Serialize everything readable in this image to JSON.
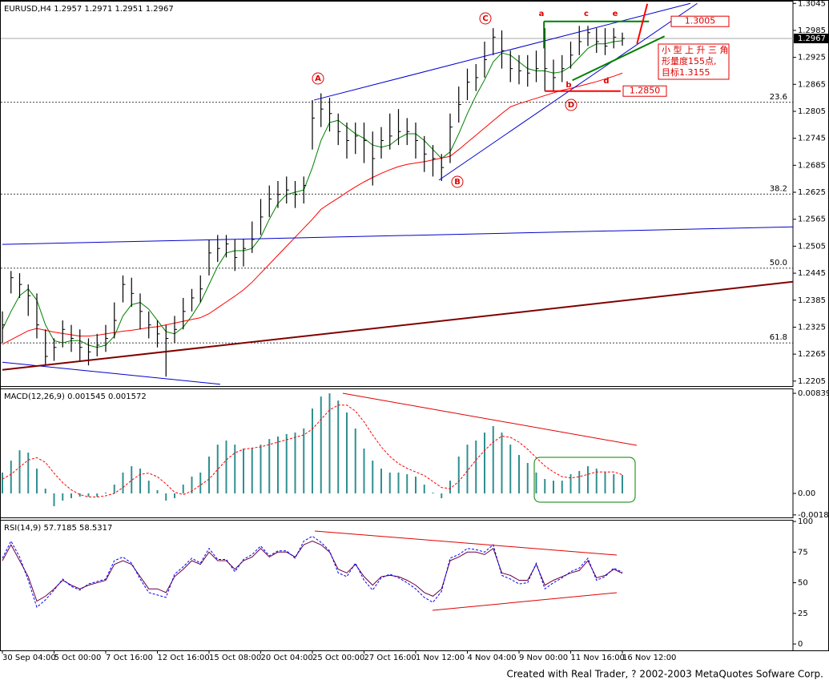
{
  "chart_data": [
    {
      "type": "ohlc",
      "title": "EURUSD,H4 1.2957 1.2971 1.2951 1.2967",
      "color": "#000000",
      "high": [
        1.236,
        1.245,
        1.2445,
        1.242,
        1.24,
        1.232,
        1.23,
        1.234,
        1.233,
        1.232,
        1.23,
        1.231,
        1.233,
        1.238,
        1.244,
        1.2435,
        1.24,
        1.236,
        1.234,
        1.233,
        1.235,
        1.239,
        1.241,
        1.244,
        1.252,
        1.253,
        1.253,
        1.252,
        1.252,
        1.256,
        1.261,
        1.264,
        1.265,
        1.266,
        1.265,
        1.266,
        1.283,
        1.2845,
        1.2835,
        1.28,
        1.278,
        1.278,
        1.278,
        1.276,
        1.277,
        1.28,
        1.281,
        1.279,
        1.278,
        1.275,
        1.273,
        1.271,
        1.28,
        1.286,
        1.29,
        1.291,
        1.296,
        1.299,
        1.2985,
        1.294,
        1.293,
        1.293,
        1.294,
        1.299,
        1.292,
        1.293,
        1.296,
        1.2995,
        1.2995,
        1.299,
        1.299,
        1.299,
        1.298
      ],
      "low": [
        1.229,
        1.24,
        1.239,
        1.235,
        1.23,
        1.224,
        1.225,
        1.228,
        1.227,
        1.225,
        1.224,
        1.226,
        1.227,
        1.23,
        1.238,
        1.237,
        1.232,
        1.23,
        1.228,
        1.2215,
        1.229,
        1.232,
        1.236,
        1.238,
        1.244,
        1.247,
        1.248,
        1.245,
        1.246,
        1.249,
        1.253,
        1.257,
        1.259,
        1.26,
        1.259,
        1.26,
        1.272,
        1.277,
        1.276,
        1.273,
        1.27,
        1.271,
        1.269,
        1.264,
        1.27,
        1.272,
        1.273,
        1.273,
        1.27,
        1.267,
        1.266,
        1.265,
        1.269,
        1.278,
        1.283,
        1.285,
        1.288,
        1.293,
        1.29,
        1.287,
        1.2865,
        1.286,
        1.287,
        1.285,
        1.285,
        1.287,
        1.29,
        1.293,
        1.295,
        1.2935,
        1.293,
        1.2945,
        1.2951
      ],
      "close": [
        1.233,
        1.2435,
        1.242,
        1.2395,
        1.233,
        1.226,
        1.228,
        1.232,
        1.23,
        1.228,
        1.227,
        1.2285,
        1.23,
        1.234,
        1.242,
        1.24,
        1.236,
        1.233,
        1.231,
        1.23,
        1.232,
        1.236,
        1.239,
        1.241,
        1.249,
        1.25,
        1.251,
        1.248,
        1.25,
        1.252,
        1.257,
        1.261,
        1.262,
        1.263,
        1.262,
        1.264,
        1.279,
        1.281,
        1.28,
        1.276,
        1.274,
        1.275,
        1.274,
        1.27,
        1.274,
        1.275,
        1.276,
        1.276,
        1.274,
        1.271,
        1.27,
        1.268,
        1.277,
        1.282,
        1.287,
        1.288,
        1.292,
        1.297,
        1.294,
        1.29,
        1.2895,
        1.289,
        1.29,
        1.29,
        1.288,
        1.29,
        1.293,
        1.296,
        1.298,
        1.296,
        1.295,
        1.297,
        1.2967
      ],
      "lines": [
        {
          "color": "#008000",
          "values": [
            1.232,
            1.236,
            1.2395,
            1.241,
            1.2385,
            1.233,
            1.2295,
            1.229,
            1.2295,
            1.2295,
            1.2285,
            1.228,
            1.2285,
            1.2305,
            1.235,
            1.2375,
            1.238,
            1.2365,
            1.234,
            1.2315,
            1.231,
            1.2325,
            1.235,
            1.238,
            1.242,
            1.246,
            1.249,
            1.2495,
            1.2495,
            1.25,
            1.2525,
            1.2565,
            1.26,
            1.262,
            1.2625,
            1.263,
            1.268,
            1.274,
            1.278,
            1.2785,
            1.277,
            1.2755,
            1.2745,
            1.273,
            1.2725,
            1.273,
            1.2745,
            1.2755,
            1.2755,
            1.274,
            1.272,
            1.27,
            1.2715,
            1.2755,
            1.28,
            1.284,
            1.2875,
            1.2915,
            1.2935,
            1.293,
            1.2915,
            1.29,
            1.2895,
            1.2895,
            1.289,
            1.2893,
            1.2905,
            1.2925,
            1.2945,
            1.2955,
            1.2955,
            1.296,
            1.2962
          ]
        },
        {
          "color": "#ff0000",
          "values": [
            1.2287,
            1.2297,
            1.2307,
            1.2317,
            1.2322,
            1.2318,
            1.2314,
            1.2311,
            1.2308,
            1.2305,
            1.2305,
            1.2307,
            1.231,
            1.2313,
            1.2316,
            1.2318,
            1.2321,
            1.2324,
            1.2326,
            1.233,
            1.2334,
            1.2338,
            1.2342,
            1.2346,
            1.2355,
            1.2368,
            1.2381,
            1.2394,
            1.2408,
            1.2425,
            1.2445,
            1.2465,
            1.2485,
            1.2505,
            1.2525,
            1.2545,
            1.2565,
            1.2587,
            1.26,
            1.2612,
            1.2625,
            1.2637,
            1.2648,
            1.2658,
            1.2667,
            1.2675,
            1.2682,
            1.2687,
            1.269,
            1.2693,
            1.2697,
            1.2701,
            1.2705,
            1.272,
            1.2736,
            1.2752,
            1.2768,
            1.2784,
            1.28,
            1.2815,
            1.2822,
            1.2828,
            1.2834,
            1.284,
            1.2846,
            1.2852,
            1.2856,
            1.2861,
            1.2866,
            1.2871,
            1.2877,
            1.2883,
            1.289
          ]
        }
      ],
      "levels": [
        {
          "value": 1.2825,
          "label": "23.6"
        },
        {
          "value": 1.2621,
          "label": "38.2"
        },
        {
          "value": 1.2456,
          "label": "50.0"
        },
        {
          "value": 1.229,
          "label": "61.8"
        }
      ],
      "last_price": 1.2967,
      "price_marks": [
        {
          "value": 1.3005,
          "label": "1.3005"
        },
        {
          "value": 1.285,
          "label": "1.2850"
        }
      ],
      "trendlines": [
        {
          "color": "#0000cc",
          "x": [
            36.2,
            79.9
          ],
          "y": [
            1.283,
            1.3045
          ]
        },
        {
          "color": "#0000cc",
          "x": [
            50.7,
            80.7
          ],
          "y": [
            1.2652,
            1.3045
          ]
        },
        {
          "color": "#0000cc",
          "x": [
            0,
            91.8
          ],
          "y": [
            1.2509,
            1.2548
          ]
        },
        {
          "color": "#0000cc",
          "x": [
            0,
            25.3
          ],
          "y": [
            1.2247,
            1.2198
          ]
        },
        {
          "color": "#800000",
          "x": [
            0,
            91.8
          ],
          "y": [
            1.223,
            1.2426
          ]
        },
        {
          "color": "#008000",
          "x": [
            62.9,
            75.1
          ],
          "y": [
            1.3005,
            1.3005
          ]
        },
        {
          "color": "#008000",
          "x": [
            62.9,
            62.9
          ],
          "y": [
            1.3005,
            1.2945
          ]
        },
        {
          "color": "#008000",
          "x": [
            66.2,
            76.9
          ],
          "y": [
            1.2874,
            1.2972
          ]
        },
        {
          "color": "#ff0000",
          "x": [
            63.0,
            71.8
          ],
          "y": [
            1.285,
            1.285
          ]
        },
        {
          "color": "#ff0000",
          "x": [
            73.7,
            74.9
          ],
          "y": [
            1.2955,
            1.3044
          ]
        }
      ],
      "wave_labels": [
        "A",
        "B",
        "C",
        "D",
        "a",
        "b",
        "c",
        "d",
        "e"
      ],
      "note": [
        "小 型 上 升 三 角",
        "形量度155点,",
        "目标1.3155"
      ],
      "ylim": [
        1.2194,
        1.3049
      ],
      "yticks": [
        1.3045,
        1.2985,
        1.2925,
        1.2865,
        1.2805,
        1.2745,
        1.2685,
        1.2625,
        1.2565,
        1.2505,
        1.2445,
        1.2385,
        1.2325,
        1.2265,
        1.2205
      ]
    },
    {
      "type": "bar",
      "title": "MACD(12,26,9) 0.001545 0.001572",
      "series": [
        {
          "color": "#2f8f8f",
          "style": "bar",
          "values": [
            0.00175,
            0.00275,
            0.00362,
            0.00342,
            0.00208,
            0.0004,
            -0.00107,
            -0.0006,
            -0.0004,
            -0.00027,
            -0.00027,
            -0.00027,
            7e-05,
            0.00074,
            0.00175,
            0.00228,
            0.00208,
            0.00107,
            0.00027,
            -0.0006,
            -0.0004,
            0.00074,
            0.00141,
            0.00175,
            0.00309,
            0.00409,
            0.00443,
            0.00409,
            0.00376,
            0.00376,
            0.00409,
            0.00456,
            0.00477,
            0.00497,
            0.0051,
            0.00544,
            0.00711,
            0.00812,
            0.00839,
            0.00778,
            0.00678,
            0.00544,
            0.00376,
            0.00275,
            0.00208,
            0.00175,
            0.00175,
            0.00161,
            0.00141,
            0.00074,
            7e-05,
            -0.0004,
            0.00107,
            0.00309,
            0.00409,
            0.00443,
            0.0051,
            0.00564,
            0.0051,
            0.00409,
            0.00322,
            0.00255,
            0.00175,
            0.00121,
            0.00107,
            0.00107,
            0.00161,
            0.00188,
            0.00228,
            0.00208,
            0.00175,
            0.00161,
            0.001545
          ]
        },
        {
          "color": "#ff0000",
          "style": "dashed",
          "values": [
            0.0012,
            0.0016,
            0.0022,
            0.0028,
            0.003,
            0.0026,
            0.0017,
            0.0009,
            0.0003,
            -0.0001,
            -0.0003,
            -0.0003,
            -0.0002,
            0.0,
            0.0005,
            0.0011,
            0.0016,
            0.0017,
            0.0014,
            0.0008,
            0.0001,
            -0.0001,
            0.0002,
            0.0007,
            0.0012,
            0.002,
            0.0028,
            0.0034,
            0.0037,
            0.0038,
            0.0039,
            0.0041,
            0.0043,
            0.0045,
            0.0047,
            0.0049,
            0.0054,
            0.0062,
            0.007,
            0.0074,
            0.0074,
            0.0069,
            0.006,
            0.0049,
            0.0039,
            0.0031,
            0.0025,
            0.0021,
            0.0018,
            0.0015,
            0.001,
            0.0005,
            0.0004,
            0.001,
            0.0019,
            0.0028,
            0.0036,
            0.0043,
            0.0048,
            0.0047,
            0.0043,
            0.0037,
            0.003,
            0.0023,
            0.0018,
            0.0014,
            0.0013,
            0.0014,
            0.0016,
            0.0018,
            0.0018,
            0.0018,
            0.001572
          ]
        }
      ],
      "ylim": [
        -0.00201,
        0.00873
      ],
      "yticks": [
        0.00839,
        {
          "value": 0,
          "label": "0.00"
        },
        -0.0018
      ]
    },
    {
      "type": "line",
      "title": "RSI(14,9) 57.7185 58.5317",
      "categories": [
        "30 Sep 04:00",
        null,
        null,
        null,
        null,
        null,
        "5 Oct 00:00",
        null,
        null,
        null,
        null,
        null,
        "7 Oct 16:00",
        null,
        null,
        null,
        null,
        null,
        "12 Oct 16:00",
        null,
        null,
        null,
        null,
        null,
        "15 Oct 08:00",
        null,
        null,
        null,
        null,
        null,
        "20 Oct 04:00",
        null,
        null,
        null,
        null,
        null,
        "25 Oct 00:00",
        null,
        null,
        null,
        null,
        null,
        "27 Oct 16:00",
        null,
        null,
        null,
        null,
        null,
        "1 Nov 12:00",
        null,
        null,
        null,
        null,
        null,
        "4 Nov 04:00",
        null,
        null,
        null,
        null,
        null,
        "9 Nov 00:00",
        null,
        null,
        null,
        null,
        null,
        "11 Nov 16:00",
        null,
        null,
        null,
        null,
        null,
        "16 Nov 12:00"
      ],
      "series": [
        {
          "color": "#6a0040",
          "style": "solid",
          "values": [
            68,
            81,
            68,
            55,
            35,
            39,
            45,
            52,
            48,
            45,
            48,
            50,
            52,
            65,
            68,
            65,
            55,
            45,
            45,
            42,
            55,
            61,
            68,
            65,
            75,
            68,
            68,
            61,
            68,
            71,
            78,
            71,
            75,
            75,
            71,
            81,
            84,
            81,
            75,
            61,
            58,
            65,
            55,
            48,
            55,
            56,
            55,
            52,
            48,
            42,
            39,
            45,
            68,
            71,
            75,
            75,
            73,
            78,
            58,
            56,
            52,
            52,
            65,
            48,
            52,
            55,
            58,
            60,
            68,
            54,
            56,
            61,
            57.7185
          ]
        },
        {
          "color": "#0000ff",
          "style": "dashed",
          "values": [
            70,
            84,
            71,
            52,
            30,
            36,
            44,
            53,
            47,
            44,
            49,
            51,
            53,
            68,
            71,
            66,
            53,
            42,
            40,
            38,
            57,
            63,
            70,
            66,
            78,
            69,
            69,
            59,
            69,
            73,
            80,
            72,
            76,
            76,
            70,
            84,
            88,
            83,
            76,
            58,
            55,
            66,
            52,
            44,
            54,
            57,
            54,
            50,
            45,
            38,
            34,
            43,
            70,
            73,
            78,
            77,
            75,
            81,
            56,
            53,
            49,
            50,
            66,
            45,
            50,
            54,
            59,
            62,
            70,
            52,
            55,
            62,
            58.5317
          ]
        }
      ],
      "ylim": [
        -5.2,
        100.7
      ],
      "yticks": [
        0,
        25,
        50,
        75,
        100
      ]
    }
  ],
  "footer": "Created with Real Trader, ? 2002-2003 MetaQuotes Sofware Corp."
}
